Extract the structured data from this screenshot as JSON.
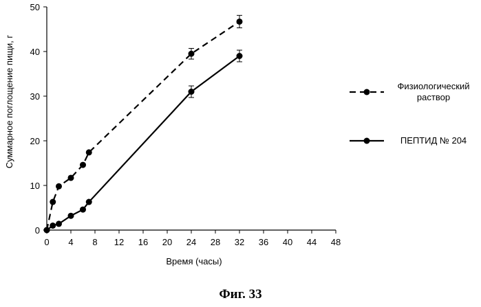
{
  "chart_data": {
    "type": "line",
    "title": "",
    "xlabel": "Время (часы)",
    "ylabel": "Суммарное поглощение пищи, г",
    "xlim": [
      0,
      48
    ],
    "ylim": [
      0,
      50
    ],
    "xticks": [
      0,
      4,
      8,
      12,
      16,
      20,
      24,
      28,
      32,
      36,
      40,
      44,
      48
    ],
    "yticks": [
      0,
      10,
      20,
      30,
      40,
      50
    ],
    "grid": false,
    "legend_position": "right",
    "series": [
      {
        "name": "Физиологический раствор",
        "line_style": "dashed",
        "color": "#000000",
        "x": [
          0,
          1,
          2,
          4,
          6,
          7,
          24,
          32
        ],
        "y": [
          0,
          6.3,
          9.8,
          11.7,
          14.6,
          17.4,
          39.5,
          46.7
        ],
        "error": [
          0,
          0,
          0,
          0,
          0,
          0,
          1.2,
          1.4
        ]
      },
      {
        "name": "ПЕПТИД № 204",
        "line_style": "solid",
        "color": "#000000",
        "x": [
          0,
          1,
          2,
          4,
          6,
          7,
          24,
          32
        ],
        "y": [
          0,
          1.0,
          1.4,
          3.2,
          4.6,
          6.3,
          31.0,
          39.0
        ],
        "error": [
          0,
          0,
          0,
          0,
          0,
          0,
          1.3,
          1.3
        ]
      }
    ]
  },
  "legend": {
    "items": [
      {
        "lines": [
          "Физиологический",
          "раствор"
        ]
      },
      {
        "lines": [
          "ПЕПТИД №  204"
        ]
      }
    ]
  },
  "caption": "Фиг. 33"
}
